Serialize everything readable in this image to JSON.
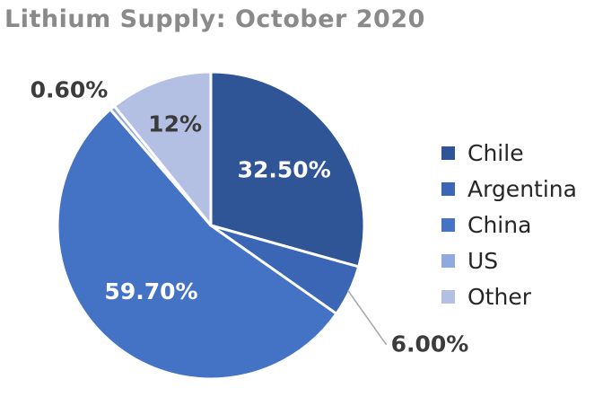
{
  "chart_data": {
    "type": "pie",
    "title": "Lithium Supply: October 2020",
    "categories": [
      "Chile",
      "Argentina",
      "China",
      "US",
      "Other"
    ],
    "values": [
      32.5,
      6.0,
      59.7,
      0.6,
      12
    ],
    "data_labels": [
      "32.50%",
      "6.00%",
      "59.70%",
      "0.60%",
      "12%"
    ],
    "colors": [
      "#2f5597",
      "#3a66b5",
      "#4472c4",
      "#8faadc",
      "#b4c0e3"
    ],
    "label_colors": [
      "#ffffff",
      "#3b3b3b",
      "#ffffff",
      "#3b3b3b",
      "#3b3b3b"
    ],
    "start_angle": "12 o'clock",
    "direction": "clockwise",
    "legend_position": "right"
  }
}
